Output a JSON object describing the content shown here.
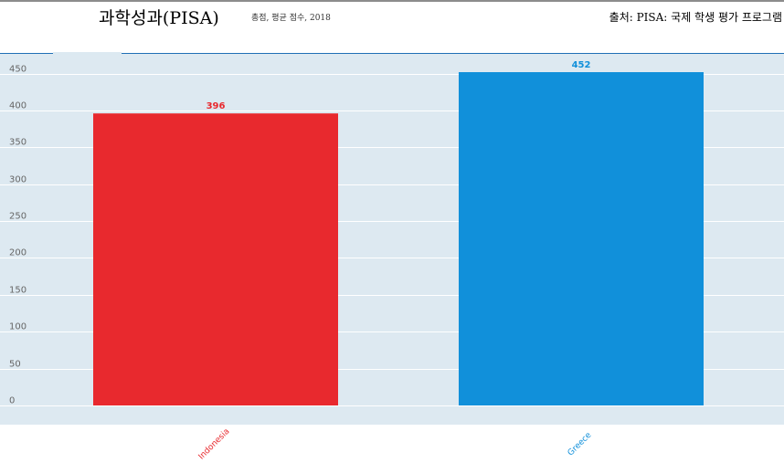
{
  "header": {
    "title": "과학성과(PISA)",
    "subtitle": "총점, 평균 점수, 2018",
    "source": "출처: PISA: 국제 학생 평가 프로그램"
  },
  "colors": {
    "plot_background": "#dde9f1",
    "header_line": "#1f6fb5"
  },
  "chart_data": {
    "type": "bar",
    "title": "과학성과(PISA)",
    "subtitle": "총점, 평균 점수, 2018",
    "categories": [
      "Indonesia",
      "Greece"
    ],
    "values": [
      396,
      452
    ],
    "bar_colors": [
      "#e8292e",
      "#1190da"
    ],
    "label_colors": [
      "#e8292e",
      "#1190da"
    ],
    "ylim": [
      0,
      452
    ],
    "yticks": [
      0,
      50,
      100,
      150,
      200,
      250,
      300,
      350,
      400,
      450
    ],
    "grid": true,
    "xlabel": "",
    "ylabel": ""
  }
}
